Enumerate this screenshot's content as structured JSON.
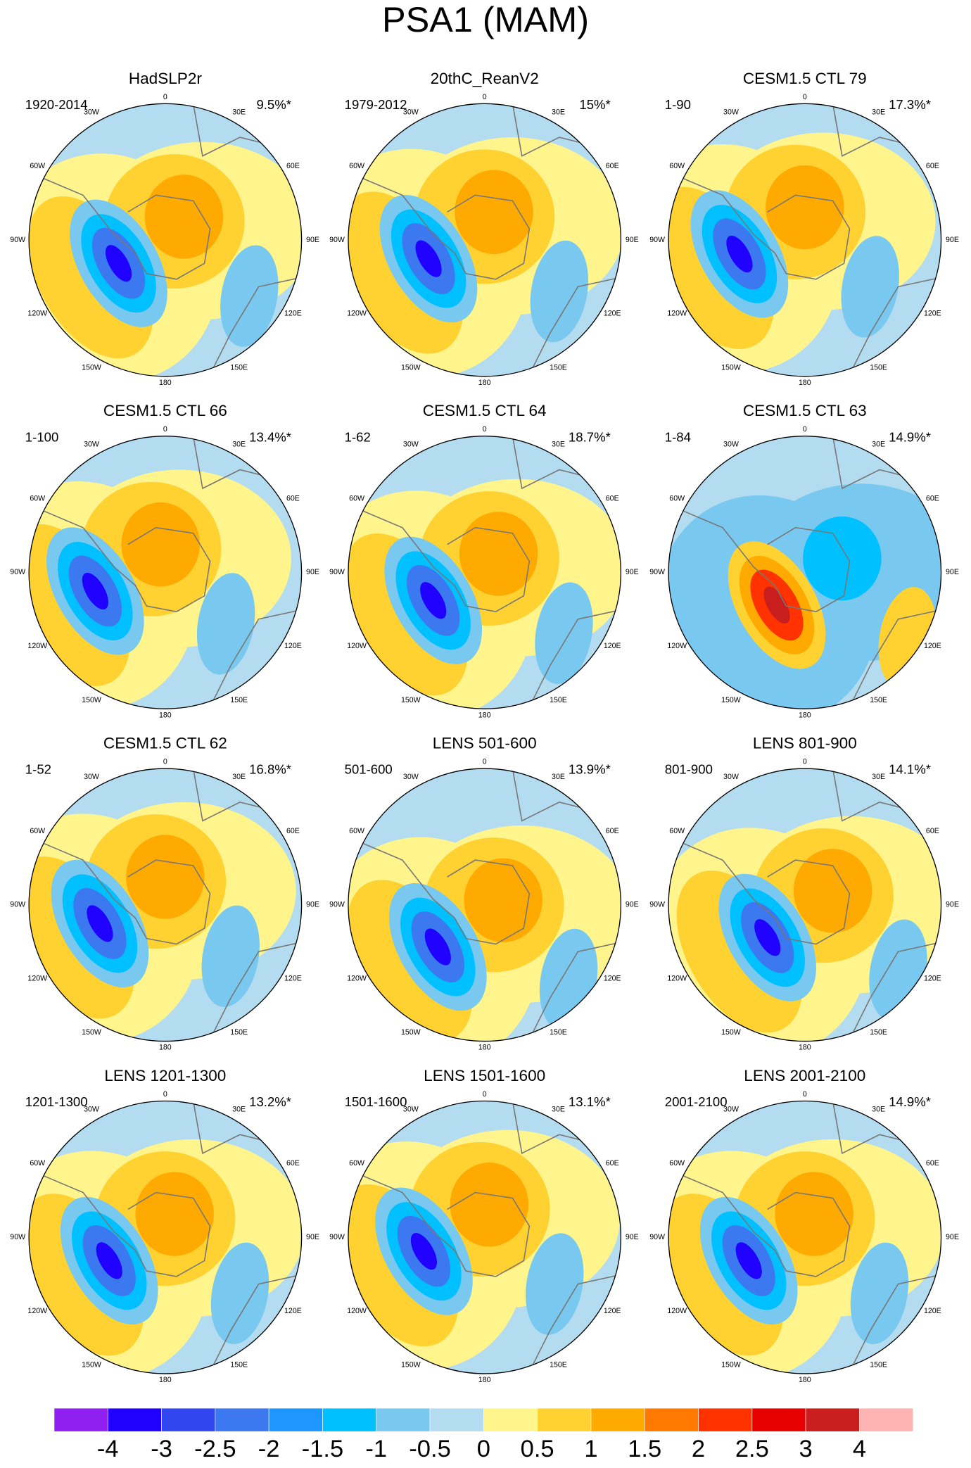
{
  "title": "PSA1 (MAM)",
  "longitude_labels": [
    "0",
    "30E",
    "60E",
    "90E",
    "120E",
    "150E",
    "180",
    "150W",
    "120W",
    "90W",
    "60W",
    "30W"
  ],
  "panels": [
    {
      "title": "HadSLP2r",
      "period": "1920-2014",
      "variance": "9.5%*"
    },
    {
      "title": "20thC_ReanV2",
      "period": "1979-2012",
      "variance": "15%*"
    },
    {
      "title": "CESM1.5 CTL 79",
      "period": "1-90",
      "variance": "17.3%*"
    },
    {
      "title": "CESM1.5 CTL 66",
      "period": "1-100",
      "variance": "13.4%*"
    },
    {
      "title": "CESM1.5 CTL 64",
      "period": "1-62",
      "variance": "18.7%*"
    },
    {
      "title": "CESM1.5 CTL 63",
      "period": "1-84",
      "variance": "14.9%*"
    },
    {
      "title": "CESM1.5 CTL 62",
      "period": "1-52",
      "variance": "16.8%*"
    },
    {
      "title": "LENS 501-600",
      "period": "501-600",
      "variance": "13.9%*"
    },
    {
      "title": "LENS 801-900",
      "period": "801-900",
      "variance": "14.1%*"
    },
    {
      "title": "LENS 1201-1300",
      "period": "1201-1300",
      "variance": "13.2%*"
    },
    {
      "title": "LENS 1501-1600",
      "period": "1501-1600",
      "variance": "13.1%*"
    },
    {
      "title": "LENS 2001-2100",
      "period": "2001-2100",
      "variance": "14.9%*"
    }
  ],
  "colorbar": {
    "colors": [
      "#8f20f0",
      "#2000ff",
      "#3246f0",
      "#3c78f0",
      "#1e96ff",
      "#00c0ff",
      "#78c8f0",
      "#b4dcf0",
      "#fff58c",
      "#ffd232",
      "#ffaa00",
      "#ff7800",
      "#ff3200",
      "#e60000",
      "#c81e1e",
      "#ffb4b4"
    ],
    "levels": [
      -4,
      -3,
      -2.5,
      -2,
      -1.5,
      -1,
      -0.5,
      0,
      0.5,
      1,
      1.5,
      2,
      2.5,
      3,
      4
    ]
  }
}
